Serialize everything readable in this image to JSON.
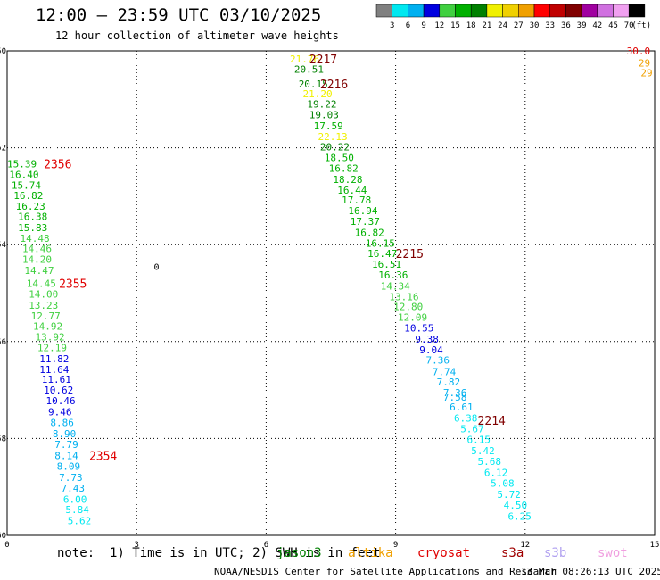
{
  "chart_data": {
    "type": "scatter",
    "title": "12:00 — 23:59 UTC 03/10/2025",
    "subtitle": "12 hour collection of altimeter wave heights",
    "note": "note:  1) Time is in UTC; 2) SWH is in feet",
    "credit": "NOAA/NESDIS Center for Satellite Applications and Research",
    "generated": "13 Mar 08:26:13 UTC 2025",
    "missions": [
      {
        "name": "jason3",
        "color": "#008000"
      },
      {
        "name": "altika",
        "color": "#f0a000"
      },
      {
        "name": "cryosat",
        "color": "#e00000"
      },
      {
        "name": "s3a",
        "color": "#a00000"
      },
      {
        "name": "s3b",
        "color": "#b0a0f0"
      },
      {
        "name": "swot",
        "color": "#f0a0e0"
      }
    ],
    "xlim": [
      0,
      15
    ],
    "ylim": [
      -60,
      -50
    ],
    "xticks": [
      0,
      3,
      6,
      9,
      12,
      15
    ],
    "yticks": [
      -50,
      -52,
      -54,
      -56,
      -58,
      -60
    ],
    "grid": true,
    "legend": {
      "placement": "top-right",
      "unit": "(ft)",
      "bins": [
        {
          "label": "3",
          "color": "#808080"
        },
        {
          "label": "6",
          "color": "#00e8f0"
        },
        {
          "label": "9",
          "color": "#00b0f0"
        },
        {
          "label": "12",
          "color": "#0000e0"
        },
        {
          "label": "15",
          "color": "#40d040"
        },
        {
          "label": "18",
          "color": "#00b000"
        },
        {
          "label": "21",
          "color": "#008000"
        },
        {
          "label": "24",
          "color": "#f0f000"
        },
        {
          "label": "27",
          "color": "#f0d000"
        },
        {
          "label": "30",
          "color": "#f0a000"
        },
        {
          "label": "33",
          "color": "#ff0000"
        },
        {
          "label": "36",
          "color": "#c00000"
        },
        {
          "label": "39",
          "color": "#800000"
        },
        {
          "label": "42",
          "color": "#a000a0"
        },
        {
          "label": "45",
          "color": "#d070e0"
        },
        {
          "label": "70",
          "color": "#f0a0f0"
        },
        {
          "label": "",
          "color": "#000000"
        }
      ]
    },
    "pass_labels": [
      {
        "text": "2217",
        "x": 7.0,
        "y": -50.17,
        "color": "#800000"
      },
      {
        "text": "2216",
        "x": 7.25,
        "y": -50.68,
        "color": "#800000"
      },
      {
        "text": "2356",
        "x": 0.85,
        "y": -52.33,
        "color": "#e00000"
      },
      {
        "text": "2355",
        "x": 1.2,
        "y": -54.8,
        "color": "#e00000"
      },
      {
        "text": "2215",
        "x": 9.0,
        "y": -54.18,
        "color": "#800000"
      },
      {
        "text": "2214",
        "x": 10.9,
        "y": -57.62,
        "color": "#800000"
      },
      {
        "text": "2354",
        "x": 1.9,
        "y": -58.35,
        "color": "#e00000"
      }
    ],
    "marker": {
      "text": "0",
      "x": 3.4,
      "y": -54.45
    },
    "series": [
      {
        "name": "2217",
        "points": [
          {
            "x": 6.55,
            "y": -50.17,
            "v": "21.76",
            "c": "#f0f000"
          },
          {
            "x": 6.65,
            "y": -50.38,
            "v": "20.51",
            "c": "#008000"
          }
        ]
      },
      {
        "name": "2216",
        "points": [
          {
            "x": 6.75,
            "y": -50.68,
            "v": "20.15",
            "c": "#008000"
          },
          {
            "x": 6.85,
            "y": -50.88,
            "v": "21.20",
            "c": "#f0f000"
          },
          {
            "x": 6.95,
            "y": -51.1,
            "v": "19.22",
            "c": "#008000"
          },
          {
            "x": 7.0,
            "y": -51.32,
            "v": "19.03",
            "c": "#008000"
          },
          {
            "x": 7.1,
            "y": -51.55,
            "v": "17.59",
            "c": "#00b000"
          },
          {
            "x": 7.2,
            "y": -51.77,
            "v": "22.13",
            "c": "#f0f000"
          },
          {
            "x": 7.25,
            "y": -51.98,
            "v": "20.22",
            "c": "#008000"
          },
          {
            "x": 7.35,
            "y": -52.2,
            "v": "18.50",
            "c": "#00b000"
          },
          {
            "x": 7.45,
            "y": -52.42,
            "v": "16.82",
            "c": "#00b000"
          },
          {
            "x": 7.55,
            "y": -52.65,
            "v": "18.28",
            "c": "#00b000"
          },
          {
            "x": 7.65,
            "y": -52.87,
            "v": "16.44",
            "c": "#00b000"
          },
          {
            "x": 7.75,
            "y": -53.08,
            "v": "17.78",
            "c": "#00b000"
          },
          {
            "x": 7.9,
            "y": -53.3,
            "v": "16.94",
            "c": "#00b000"
          },
          {
            "x": 7.95,
            "y": -53.52,
            "v": "17.37",
            "c": "#00b000"
          },
          {
            "x": 8.05,
            "y": -53.75,
            "v": "16.82",
            "c": "#00b000"
          }
        ]
      },
      {
        "name": "2215",
        "points": [
          {
            "x": 8.3,
            "y": -53.97,
            "v": "16.15",
            "c": "#00b000"
          },
          {
            "x": 8.35,
            "y": -54.18,
            "v": "16.47",
            "c": "#00b000"
          },
          {
            "x": 8.45,
            "y": -54.4,
            "v": "16.51",
            "c": "#00b000"
          },
          {
            "x": 8.6,
            "y": -54.62,
            "v": "16.36",
            "c": "#00b000"
          },
          {
            "x": 8.65,
            "y": -54.85,
            "v": "14.34",
            "c": "#40d040"
          },
          {
            "x": 8.85,
            "y": -55.07,
            "v": "13.16",
            "c": "#40d040"
          },
          {
            "x": 8.95,
            "y": -55.28,
            "v": "12.80",
            "c": "#40d040"
          },
          {
            "x": 9.05,
            "y": -55.5,
            "v": "12.09",
            "c": "#40d040"
          },
          {
            "x": 9.2,
            "y": -55.72,
            "v": "10.55",
            "c": "#0000e0"
          },
          {
            "x": 9.45,
            "y": -55.95,
            "v": "9.38",
            "c": "#0000e0"
          },
          {
            "x": 9.55,
            "y": -56.17,
            "v": "9.04",
            "c": "#0000e0"
          },
          {
            "x": 9.7,
            "y": -56.38,
            "v": "7.36",
            "c": "#00b0f0"
          },
          {
            "x": 9.85,
            "y": -56.62,
            "v": "7.74",
            "c": "#00b0f0"
          },
          {
            "x": 9.95,
            "y": -56.83,
            "v": "7.82",
            "c": "#00b0f0"
          },
          {
            "x": 10.1,
            "y": -57.05,
            "v": "7.36",
            "c": "#00b0f0"
          }
        ]
      },
      {
        "name": "2214",
        "points": [
          {
            "x": 10.1,
            "y": -57.15,
            "v": "7.58",
            "c": "#00b0f0"
          },
          {
            "x": 10.25,
            "y": -57.35,
            "v": "6.61",
            "c": "#00b0f0"
          },
          {
            "x": 10.35,
            "y": -57.58,
            "v": "6.38",
            "c": "#00e8f0"
          },
          {
            "x": 10.5,
            "y": -57.8,
            "v": "5.67",
            "c": "#00e8f0"
          },
          {
            "x": 10.65,
            "y": -58.02,
            "v": "6.15",
            "c": "#00e8f0"
          },
          {
            "x": 10.75,
            "y": -58.25,
            "v": "5.42",
            "c": "#00e8f0"
          },
          {
            "x": 10.9,
            "y": -58.47,
            "v": "5.68",
            "c": "#00e8f0"
          },
          {
            "x": 11.05,
            "y": -58.7,
            "v": "6.12",
            "c": "#00e8f0"
          },
          {
            "x": 11.2,
            "y": -58.92,
            "v": "5.08",
            "c": "#00e8f0"
          },
          {
            "x": 11.35,
            "y": -59.15,
            "v": "5.72",
            "c": "#00e8f0"
          },
          {
            "x": 11.5,
            "y": -59.37,
            "v": "4.50",
            "c": "#00e8f0"
          },
          {
            "x": 11.6,
            "y": -59.6,
            "v": "6.25",
            "c": "#00e8f0"
          }
        ]
      },
      {
        "name": "2356",
        "points": [
          {
            "x": 0.0,
            "y": -52.33,
            "v": "15.39",
            "c": "#00b000"
          },
          {
            "x": 0.05,
            "y": -52.55,
            "v": "16.40",
            "c": "#00b000"
          },
          {
            "x": 0.1,
            "y": -52.77,
            "v": "15.74",
            "c": "#00b000"
          },
          {
            "x": 0.15,
            "y": -52.98,
            "v": "16.82",
            "c": "#00b000"
          },
          {
            "x": 0.2,
            "y": -53.2,
            "v": "16.23",
            "c": "#00b000"
          },
          {
            "x": 0.25,
            "y": -53.42,
            "v": "16.38",
            "c": "#00b000"
          },
          {
            "x": 0.25,
            "y": -53.65,
            "v": "15.83",
            "c": "#00b000"
          },
          {
            "x": 0.3,
            "y": -53.87,
            "v": "14.48",
            "c": "#40d040"
          },
          {
            "x": 0.35,
            "y": -54.08,
            "v": "14.46",
            "c": "#40d040"
          },
          {
            "x": 0.35,
            "y": -54.3,
            "v": "14.20",
            "c": "#40d040"
          },
          {
            "x": 0.4,
            "y": -54.53,
            "v": "14.47",
            "c": "#40d040"
          }
        ]
      },
      {
        "name": "2355",
        "points": [
          {
            "x": 0.45,
            "y": -54.8,
            "v": "14.45",
            "c": "#40d040"
          },
          {
            "x": 0.5,
            "y": -55.02,
            "v": "14.00",
            "c": "#40d040"
          },
          {
            "x": 0.5,
            "y": -55.25,
            "v": "13.23",
            "c": "#40d040"
          },
          {
            "x": 0.55,
            "y": -55.47,
            "v": "12.77",
            "c": "#40d040"
          },
          {
            "x": 0.6,
            "y": -55.68,
            "v": "14.92",
            "c": "#40d040"
          },
          {
            "x": 0.65,
            "y": -55.9,
            "v": "13.92",
            "c": "#40d040"
          },
          {
            "x": 0.7,
            "y": -56.12,
            "v": "12.19",
            "c": "#40d040"
          },
          {
            "x": 0.75,
            "y": -56.35,
            "v": "11.82",
            "c": "#0000e0"
          },
          {
            "x": 0.75,
            "y": -56.57,
            "v": "11.64",
            "c": "#0000e0"
          },
          {
            "x": 0.8,
            "y": -56.78,
            "v": "11.61",
            "c": "#0000e0"
          },
          {
            "x": 0.85,
            "y": -57.0,
            "v": "10.62",
            "c": "#0000e0"
          },
          {
            "x": 0.9,
            "y": -57.22,
            "v": "10.46",
            "c": "#0000e0"
          },
          {
            "x": 0.95,
            "y": -57.45,
            "v": "9.46",
            "c": "#0000e0"
          },
          {
            "x": 1.0,
            "y": -57.67,
            "v": "8.86",
            "c": "#00b0f0"
          },
          {
            "x": 1.05,
            "y": -57.9,
            "v": "8.90",
            "c": "#00b0f0"
          }
        ]
      },
      {
        "name": "2354",
        "points": [
          {
            "x": 1.1,
            "y": -58.12,
            "v": "7.79",
            "c": "#00b0f0"
          },
          {
            "x": 1.1,
            "y": -58.35,
            "v": "8.14",
            "c": "#00b0f0"
          },
          {
            "x": 1.15,
            "y": -58.57,
            "v": "8.09",
            "c": "#00b0f0"
          },
          {
            "x": 1.2,
            "y": -58.8,
            "v": "7.73",
            "c": "#00b0f0"
          },
          {
            "x": 1.25,
            "y": -59.02,
            "v": "7.43",
            "c": "#00b0f0"
          },
          {
            "x": 1.3,
            "y": -59.25,
            "v": "6.00",
            "c": "#00e8f0"
          },
          {
            "x": 1.35,
            "y": -59.47,
            "v": "5.84",
            "c": "#00e8f0"
          },
          {
            "x": 1.4,
            "y": -59.7,
            "v": "5.62",
            "c": "#00e8f0"
          }
        ]
      },
      {
        "name": "right-edge",
        "points": [
          {
            "x": 14.9,
            "y": -50.0,
            "v": "30.0",
            "c": "#e00000"
          },
          {
            "x": 14.9,
            "y": -50.25,
            "v": "29",
            "c": "#f0a000"
          },
          {
            "x": 14.95,
            "y": -50.45,
            "v": "29",
            "c": "#f0a000"
          }
        ]
      }
    ]
  }
}
